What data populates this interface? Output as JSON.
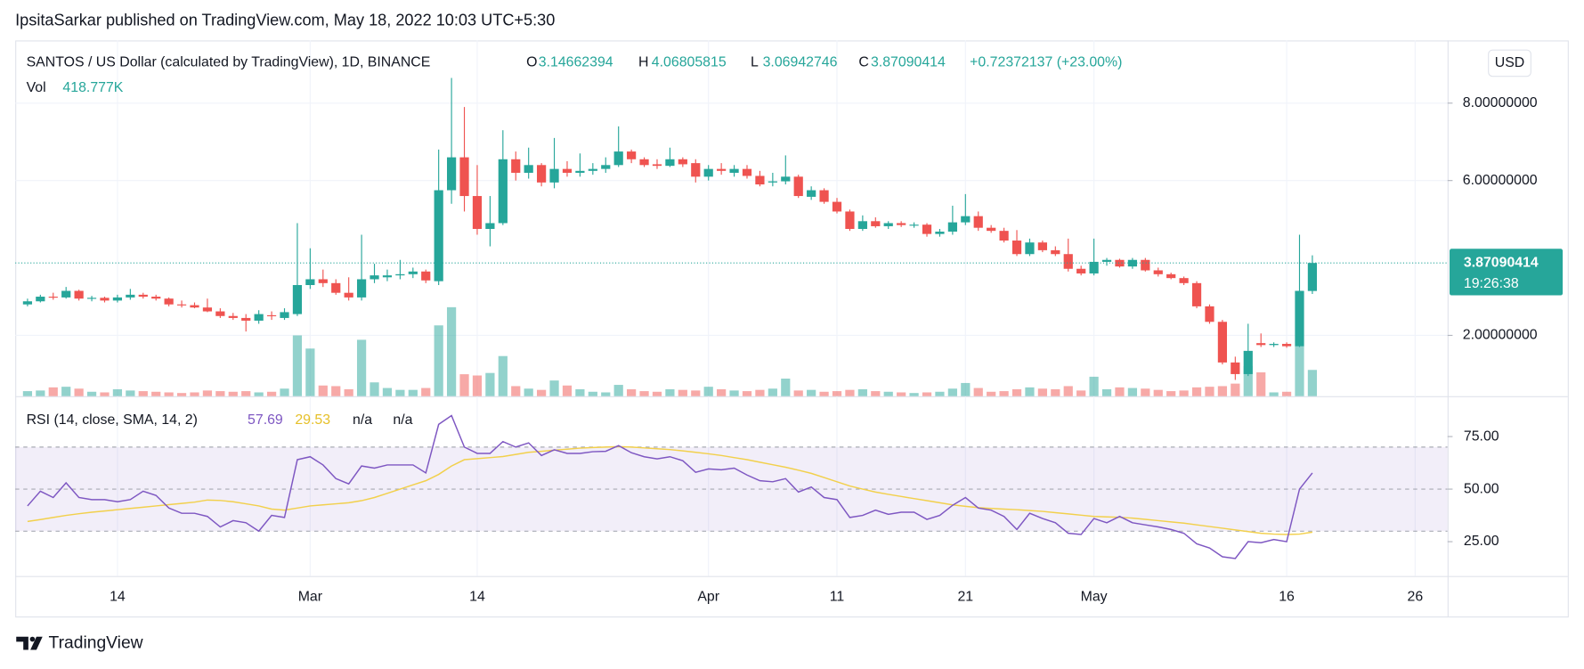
{
  "header": {
    "byline": "IpsitaSarkar published on TradingView.com, May 18, 2022 10:03 UTC+5:30"
  },
  "footer": {
    "brand": "TradingView"
  },
  "chart_data": {
    "type": "candlestick",
    "title": "SANTOS / US Dollar (calculated by TradingView), 1D, BINANCE",
    "ohlc_labels": {
      "open": "O",
      "high": "H",
      "low": "L",
      "close": "C"
    },
    "change_label": "+0.72372137 (+23.00%)",
    "volume_title": "Vol",
    "volume_label": "418.777K",
    "currency": "USD",
    "countdown": "19:26:38",
    "up_color": "#26a69a",
    "down_color": "#ef5350",
    "grid": true,
    "x": [
      "02-07",
      "02-08",
      "02-09",
      "02-10",
      "02-11",
      "02-12",
      "02-13",
      "02-14",
      "02-15",
      "02-16",
      "02-17",
      "02-18",
      "02-19",
      "02-20",
      "02-21",
      "02-22",
      "02-23",
      "02-24",
      "02-25",
      "02-26",
      "02-27",
      "02-28",
      "03-01",
      "03-02",
      "03-03",
      "03-04",
      "03-05",
      "03-06",
      "03-07",
      "03-08",
      "03-09",
      "03-10",
      "03-11",
      "03-12",
      "03-13",
      "03-14",
      "03-15",
      "03-16",
      "03-17",
      "03-18",
      "03-19",
      "03-20",
      "03-21",
      "03-22",
      "03-23",
      "03-24",
      "03-25",
      "03-26",
      "03-27",
      "03-28",
      "03-29",
      "03-30",
      "03-31",
      "04-01",
      "04-02",
      "04-03",
      "04-04",
      "04-05",
      "04-06",
      "04-07",
      "04-08",
      "04-09",
      "04-10",
      "04-11",
      "04-12",
      "04-13",
      "04-14",
      "04-15",
      "04-16",
      "04-17",
      "04-18",
      "04-19",
      "04-20",
      "04-21",
      "04-22",
      "04-23",
      "04-24",
      "04-25",
      "04-26",
      "04-27",
      "04-28",
      "04-29",
      "04-30",
      "05-01",
      "05-02",
      "05-03",
      "05-04",
      "05-05",
      "05-06",
      "05-07",
      "05-08",
      "05-09",
      "05-10",
      "05-11",
      "05-12",
      "05-13",
      "05-14",
      "05-15",
      "05-16",
      "05-17",
      "05-18"
    ],
    "open": [
      2.8,
      2.88,
      3.0,
      2.98,
      3.15,
      2.95,
      2.97,
      2.9,
      2.98,
      3.05,
      3.0,
      2.95,
      2.8,
      2.78,
      2.72,
      2.62,
      2.5,
      2.45,
      2.38,
      2.52,
      2.45,
      2.55,
      3.3,
      3.45,
      3.35,
      3.1,
      2.98,
      3.45,
      3.5,
      3.55,
      3.58,
      3.65,
      3.4,
      5.75,
      6.6,
      5.6,
      4.75,
      4.9,
      6.55,
      6.2,
      6.4,
      5.95,
      6.3,
      6.2,
      6.25,
      6.3,
      6.4,
      6.75,
      6.55,
      6.42,
      6.38,
      6.55,
      6.45,
      6.1,
      6.3,
      6.2,
      6.3,
      6.12,
      5.95,
      5.98,
      6.1,
      5.58,
      5.75,
      5.45,
      5.2,
      4.75,
      4.95,
      4.82,
      4.9,
      4.85,
      4.86,
      4.62,
      4.68,
      4.92,
      5.08,
      4.78,
      4.7,
      4.45,
      4.1,
      4.4,
      4.2,
      4.1,
      3.72,
      3.6,
      3.9,
      3.95,
      3.78,
      3.95,
      3.68,
      3.58,
      3.48,
      3.35,
      2.75,
      2.35,
      1.3,
      1.0,
      1.8,
      1.75,
      1.78,
      1.72,
      3.14662394
    ],
    "high": [
      2.95,
      3.05,
      3.1,
      3.25,
      3.18,
      3.02,
      3.0,
      3.05,
      3.2,
      3.1,
      3.05,
      2.98,
      2.9,
      2.85,
      2.95,
      2.7,
      2.58,
      2.55,
      2.65,
      2.62,
      2.7,
      4.9,
      4.25,
      3.7,
      3.45,
      3.5,
      4.6,
      3.85,
      3.7,
      3.95,
      3.75,
      3.7,
      6.8,
      8.65,
      7.9,
      6.4,
      5.6,
      7.3,
      6.75,
      6.85,
      6.45,
      7.1,
      6.5,
      6.7,
      6.45,
      6.6,
      7.4,
      6.8,
      6.6,
      6.55,
      6.85,
      6.6,
      6.55,
      6.4,
      6.45,
      6.4,
      6.4,
      6.25,
      6.2,
      6.65,
      6.15,
      5.85,
      5.8,
      5.55,
      5.25,
      5.1,
      5.05,
      4.95,
      4.95,
      4.92,
      4.9,
      4.75,
      5.35,
      5.65,
      5.2,
      4.85,
      4.78,
      4.72,
      4.5,
      4.45,
      4.3,
      4.5,
      3.8,
      4.5,
      4.0,
      3.98,
      4.0,
      4.0,
      3.75,
      3.62,
      3.52,
      3.4,
      2.8,
      2.4,
      1.45,
      2.3,
      2.05,
      1.82,
      1.82,
      4.6,
      4.06805815
    ],
    "low": [
      2.75,
      2.85,
      2.92,
      2.95,
      2.9,
      2.88,
      2.85,
      2.85,
      2.92,
      2.95,
      2.9,
      2.75,
      2.72,
      2.7,
      2.6,
      2.45,
      2.4,
      2.1,
      2.3,
      2.4,
      2.4,
      2.5,
      3.2,
      3.25,
      3.05,
      2.9,
      2.9,
      3.35,
      3.4,
      3.45,
      3.48,
      3.35,
      3.3,
      5.4,
      5.2,
      4.6,
      4.3,
      4.85,
      6.0,
      6.05,
      5.85,
      5.8,
      6.1,
      6.1,
      6.15,
      6.2,
      6.35,
      6.45,
      6.35,
      6.3,
      6.35,
      6.35,
      5.95,
      6.0,
      6.15,
      6.1,
      6.05,
      5.85,
      5.85,
      5.9,
      5.55,
      5.5,
      5.4,
      5.15,
      4.7,
      4.7,
      4.78,
      4.75,
      4.8,
      4.78,
      4.55,
      4.55,
      4.6,
      4.85,
      4.7,
      4.65,
      4.4,
      4.05,
      4.05,
      4.15,
      4.05,
      3.65,
      3.55,
      3.55,
      3.8,
      3.75,
      3.72,
      3.65,
      3.52,
      3.45,
      3.3,
      2.7,
      2.3,
      1.25,
      0.85,
      0.95,
      1.7,
      1.7,
      1.68,
      1.7,
      3.06942746
    ],
    "close": [
      2.88,
      3.0,
      2.98,
      3.15,
      2.95,
      2.97,
      2.9,
      2.98,
      3.05,
      3.0,
      2.95,
      2.8,
      2.78,
      2.72,
      2.62,
      2.5,
      2.45,
      2.38,
      2.55,
      2.5,
      2.6,
      3.3,
      3.45,
      3.35,
      3.1,
      2.98,
      3.45,
      3.55,
      3.55,
      3.58,
      3.65,
      3.42,
      5.75,
      6.6,
      5.6,
      4.75,
      4.9,
      6.55,
      6.2,
      6.4,
      5.95,
      6.3,
      6.2,
      6.25,
      6.3,
      6.4,
      6.75,
      6.55,
      6.4,
      6.38,
      6.55,
      6.42,
      6.1,
      6.3,
      6.25,
      6.3,
      6.12,
      5.9,
      5.98,
      6.1,
      5.6,
      5.75,
      5.45,
      5.2,
      4.75,
      4.95,
      4.82,
      4.9,
      4.85,
      4.86,
      4.62,
      4.68,
      4.92,
      5.08,
      4.78,
      4.7,
      4.45,
      4.1,
      4.4,
      4.2,
      4.1,
      3.72,
      3.6,
      3.9,
      3.95,
      3.78,
      3.95,
      3.68,
      3.58,
      3.48,
      3.35,
      2.75,
      2.35,
      1.3,
      1.0,
      1.6,
      1.75,
      1.78,
      1.72,
      3.15,
      3.87090414
    ],
    "volume": [
      80000,
      90000,
      140000,
      150000,
      120000,
      70000,
      60000,
      110000,
      90000,
      80000,
      70000,
      60000,
      50000,
      60000,
      90000,
      80000,
      70000,
      80000,
      60000,
      70000,
      120000,
      970000,
      760000,
      170000,
      160000,
      110000,
      900000,
      220000,
      130000,
      100000,
      100000,
      130000,
      1130000,
      1420000,
      350000,
      330000,
      370000,
      640000,
      160000,
      120000,
      100000,
      250000,
      170000,
      110000,
      70000,
      60000,
      180000,
      110000,
      80000,
      70000,
      110000,
      100000,
      90000,
      150000,
      110000,
      90000,
      80000,
      100000,
      120000,
      280000,
      90000,
      100000,
      70000,
      80000,
      100000,
      110000,
      80000,
      70000,
      60000,
      50000,
      60000,
      70000,
      120000,
      210000,
      130000,
      70000,
      80000,
      110000,
      140000,
      120000,
      110000,
      160000,
      90000,
      310000,
      110000,
      140000,
      130000,
      120000,
      100000,
      80000,
      90000,
      140000,
      150000,
      160000,
      200000,
      480000,
      380000,
      60000,
      70000,
      800000,
      418777
    ],
    "ylim": [
      0.43,
      9.62
    ],
    "yticks": [
      {
        "value": 2,
        "label": "2.00000000"
      },
      {
        "value": 6,
        "label": "6.00000000"
      },
      {
        "value": 8,
        "label": "8.00000000"
      }
    ],
    "xticks": [
      {
        "value": "02-14",
        "label": "14"
      },
      {
        "value": "03-01",
        "label": "Mar"
      },
      {
        "value": "03-14",
        "label": "14"
      },
      {
        "value": "04-01",
        "label": "Apr"
      },
      {
        "value": "04-11",
        "label": "11"
      },
      {
        "value": "04-21",
        "label": "21"
      },
      {
        "value": "05-01",
        "label": "May"
      },
      {
        "value": "05-16",
        "label": "16"
      },
      {
        "value": "05-26",
        "label": "26"
      }
    ],
    "indicator": {
      "label": "RSI (14, close, SMA, 14, 2)",
      "na_labels": [
        "n/a",
        "n/a"
      ],
      "ylim": [
        8.65,
        94.23
      ],
      "yticks": [
        {
          "value": 25,
          "label": "25.00"
        },
        {
          "value": 50,
          "label": "50.00"
        },
        {
          "value": 75,
          "label": "75.00"
        }
      ],
      "levels": [
        30,
        50,
        70
      ],
      "band_color": "#7e57c2",
      "rsi": {
        "color": "#7e57c2",
        "values": [
          42,
          49,
          46,
          53,
          46,
          45,
          45,
          44,
          45,
          49,
          47,
          41,
          38.5,
          38.5,
          37,
          32,
          35,
          34,
          30,
          37.5,
          36.5,
          64,
          65.4,
          61.5,
          55,
          52.5,
          61,
          60,
          61.5,
          61.5,
          61.5,
          57.7,
          80.8,
          85,
          70,
          67,
          67,
          72.6,
          70,
          72,
          66,
          68.7,
          67,
          67,
          67.8,
          68,
          70.7,
          67.3,
          65.4,
          64.4,
          65.4,
          63.5,
          58,
          59.6,
          59.2,
          60,
          56.7,
          54,
          53.5,
          55,
          48.6,
          51,
          46,
          45,
          36.5,
          37.5,
          40,
          38,
          39,
          39,
          35.6,
          37.5,
          42.3,
          46,
          41,
          40,
          37,
          30.8,
          38.5,
          36,
          34,
          29,
          28.4,
          36,
          34,
          37,
          34,
          33,
          32,
          30.8,
          29,
          24,
          22,
          17.8,
          17,
          25,
          24.5,
          26,
          25,
          50,
          57.69
        ]
      },
      "sma": {
        "color": "#f2d04c",
        "values": [
          34.6,
          35.5,
          36.5,
          37.5,
          38.3,
          39,
          39.6,
          40.2,
          40.8,
          41.4,
          42,
          42.6,
          43.2,
          43.8,
          44.8,
          44.6,
          44,
          43,
          42,
          40.5,
          40,
          41,
          42,
          42.5,
          43,
          43.5,
          44.5,
          46,
          48,
          50,
          52,
          54,
          57,
          61,
          64,
          64.5,
          65,
          65.5,
          66.5,
          67.5,
          68,
          68.5,
          69,
          69.5,
          69.8,
          70,
          70.2,
          70,
          69.6,
          69.2,
          68.8,
          68.2,
          67.5,
          66.8,
          66,
          65,
          64,
          62.8,
          61.6,
          60.4,
          59,
          57.5,
          55.5,
          53.5,
          51.5,
          50,
          48.6,
          47.5,
          46.5,
          45.5,
          44.5,
          43.5,
          42.5,
          41.8,
          41.2,
          40.8,
          40.5,
          40.2,
          39.8,
          39.4,
          38.8,
          38.2,
          37.6,
          37,
          36.8,
          36.6,
          36.2,
          35.6,
          35,
          34.4,
          33.8,
          33,
          32.2,
          31.4,
          30.6,
          29.8,
          29,
          28.6,
          28.4,
          28.6,
          29.53
        ]
      }
    }
  }
}
